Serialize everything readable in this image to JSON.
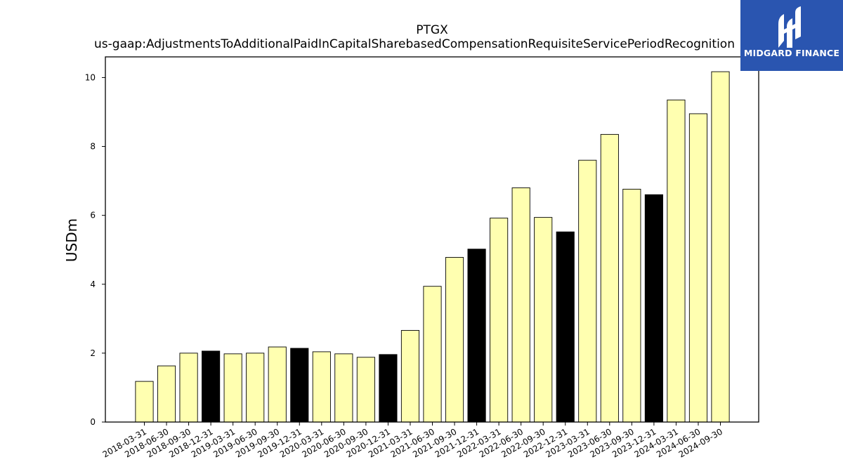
{
  "brand": {
    "name": "MIDGARD FINANCE",
    "background": "#2a55b0"
  },
  "chart_data": {
    "type": "bar",
    "title": "PTGX",
    "subtitle": "us-gaap:AdjustmentsToAdditionalPaidInCapitalSharebasedCompensationRequisiteServicePeriodRecognition",
    "xlabel": "",
    "ylabel": "USDm",
    "ylim": [
      0,
      10.6
    ],
    "yticks": [
      0,
      2,
      4,
      6,
      8,
      10
    ],
    "grid": false,
    "colors": {
      "quarter": "#ffffb0",
      "year_end": "#000000",
      "edge": "#000000"
    },
    "categories": [
      "2018-03-31",
      "2018-06-30",
      "2018-09-30",
      "2018-12-31",
      "2019-03-31",
      "2019-06-30",
      "2019-09-30",
      "2019-12-31",
      "2020-03-31",
      "2020-06-30",
      "2020-09-30",
      "2020-12-31",
      "2021-03-31",
      "2021-06-30",
      "2021-09-30",
      "2021-12-31",
      "2022-03-31",
      "2022-06-30",
      "2022-09-30",
      "2022-12-31",
      "2023-03-31",
      "2023-06-30",
      "2023-09-30",
      "2023-12-31",
      "2024-03-31",
      "2024-06-30",
      "2024-09-30"
    ],
    "values": [
      1.18,
      1.63,
      2.0,
      2.06,
      1.98,
      2.0,
      2.18,
      2.14,
      2.04,
      1.98,
      1.88,
      1.96,
      2.66,
      3.94,
      4.78,
      5.02,
      5.92,
      6.8,
      5.94,
      5.52,
      7.6,
      8.35,
      6.76,
      6.6,
      9.35,
      8.95,
      10.17
    ]
  }
}
